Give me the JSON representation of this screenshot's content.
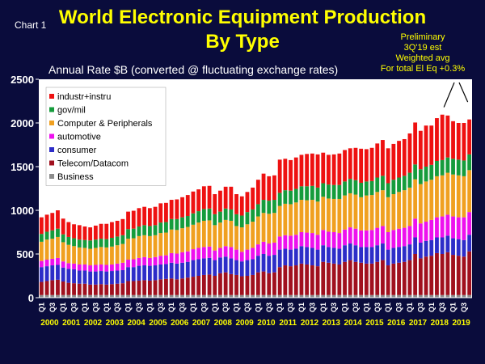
{
  "header": {
    "chart_label": "Chart 1",
    "title_line1": "World Electronic Equipment Production",
    "title_line2": "By Type",
    "subtitle": "Annual Rate $B (converted @ fluctuating exchange rates)",
    "note_lines": [
      "Preliminary",
      "3Q'19 est",
      "Weighted avg",
      "For total El Eq +0.3%"
    ]
  },
  "colors": {
    "background": "#0a0c3c",
    "title": "#ffff00",
    "Business": "#8c8c8c",
    "Telecom/Datacom": "#a0101e",
    "consumer": "#2d2dc8",
    "automotive": "#ee10ee",
    "Computer & Peripherals": "#f0a020",
    "gov/mil": "#159c3c",
    "industr+instru": "#ee1111"
  },
  "chart_data": {
    "type": "bar",
    "stacked": true,
    "ylim": [
      0,
      2500
    ],
    "yticks": [
      0,
      500,
      1000,
      1500,
      2000,
      2500
    ],
    "grid": false,
    "legend_position": "top-left",
    "years": [
      "2000",
      "2001",
      "2002",
      "2003",
      "2004",
      "2005",
      "2006",
      "2007",
      "2008",
      "2009",
      "2010",
      "2011",
      "2012",
      "2013",
      "2014",
      "2015",
      "2016",
      "2017",
      "2018",
      "2019"
    ],
    "quarter_labels": [
      "Q1",
      "Q3"
    ],
    "legend_order": [
      "industr+instru",
      "gov/mil",
      "Computer & Peripherals",
      "automotive",
      "consumer",
      "Telecom/Datacom",
      "Business"
    ],
    "series": [
      {
        "name": "Business",
        "values": [
          30,
          30,
          30,
          30,
          30,
          30,
          30,
          30,
          30,
          30,
          30,
          30,
          30,
          30,
          30,
          30,
          30,
          30,
          30,
          30,
          30,
          30,
          30,
          30,
          30,
          30,
          30,
          30,
          30,
          30,
          30,
          30,
          30,
          30,
          30,
          30,
          30,
          30,
          30,
          30,
          30,
          30,
          30,
          30,
          30,
          30,
          30,
          30,
          30,
          30,
          30,
          30,
          30,
          30,
          30,
          30,
          30,
          30,
          30,
          30,
          30,
          30,
          30,
          30,
          30,
          30,
          30,
          30,
          30,
          30,
          30,
          30,
          30,
          30,
          30,
          30,
          30,
          30,
          30,
          30
        ]
      },
      {
        "name": "Telecom/Datacom",
        "values": [
          150,
          160,
          170,
          175,
          155,
          140,
          135,
          130,
          130,
          120,
          120,
          125,
          120,
          125,
          130,
          135,
          160,
          160,
          165,
          170,
          165,
          170,
          180,
          185,
          190,
          180,
          190,
          200,
          210,
          220,
          230,
          235,
          220,
          250,
          260,
          240,
          230,
          215,
          220,
          230,
          260,
          270,
          250,
          260,
          320,
          340,
          330,
          340,
          360,
          350,
          340,
          330,
          380,
          370,
          360,
          350,
          380,
          400,
          380,
          370,
          360,
          360,
          380,
          400,
          340,
          360,
          370,
          380,
          400,
          470,
          420,
          440,
          450,
          480,
          470,
          490,
          460,
          450,
          440,
          500
        ]
      },
      {
        "name": "consumer",
        "values": [
          170,
          170,
          170,
          170,
          160,
          160,
          160,
          150,
          150,
          150,
          150,
          150,
          150,
          150,
          150,
          150,
          160,
          160,
          170,
          170,
          170,
          170,
          170,
          170,
          180,
          180,
          180,
          180,
          190,
          190,
          190,
          190,
          180,
          180,
          180,
          180,
          170,
          170,
          180,
          180,
          190,
          200,
          200,
          200,
          200,
          190,
          190,
          190,
          200,
          200,
          200,
          190,
          190,
          180,
          180,
          180,
          190,
          190,
          190,
          180,
          190,
          190,
          190,
          190,
          180,
          180,
          180,
          180,
          180,
          190,
          180,
          180,
          180,
          180,
          190,
          190,
          190,
          190,
          190,
          190
        ]
      },
      {
        "name": "automotive",
        "values": [
          70,
          75,
          75,
          80,
          70,
          65,
          65,
          70,
          70,
          70,
          75,
          75,
          75,
          75,
          80,
          85,
          85,
          90,
          90,
          95,
          90,
          95,
          100,
          100,
          110,
          115,
          120,
          120,
          125,
          130,
          130,
          130,
          110,
          110,
          120,
          130,
          120,
          110,
          120,
          130,
          130,
          140,
          140,
          140,
          150,
          155,
          160,
          160,
          160,
          165,
          170,
          170,
          175,
          175,
          180,
          180,
          180,
          185,
          190,
          190,
          190,
          195,
          200,
          200,
          200,
          205,
          210,
          210,
          210,
          215,
          220,
          220,
          230,
          230,
          240,
          240,
          250,
          250,
          260,
          260
        ]
      },
      {
        "name": "Computer & Peripherals",
        "values": [
          220,
          230,
          230,
          240,
          220,
          210,
          200,
          195,
          190,
          190,
          195,
          200,
          200,
          205,
          210,
          215,
          240,
          240,
          250,
          250,
          250,
          250,
          260,
          260,
          270,
          270,
          275,
          280,
          280,
          290,
          300,
          300,
          290,
          290,
          300,
          300,
          270,
          280,
          290,
          300,
          320,
          330,
          340,
          340,
          350,
          360,
          360,
          370,
          370,
          370,
          380,
          380,
          380,
          380,
          380,
          390,
          390,
          390,
          390,
          380,
          400,
          400,
          410,
          410,
          400,
          410,
          420,
          430,
          440,
          450,
          450,
          460,
          460,
          470,
          470,
          480,
          480,
          480,
          470,
          480
        ]
      },
      {
        "name": "gov/mil",
        "values": [
          90,
          90,
          95,
          95,
          90,
          90,
          90,
          90,
          90,
          95,
          95,
          95,
          95,
          100,
          100,
          100,
          110,
          110,
          110,
          115,
          115,
          115,
          120,
          120,
          120,
          125,
          125,
          125,
          130,
          130,
          135,
          135,
          125,
          125,
          130,
          130,
          135,
          135,
          140,
          140,
          140,
          150,
          150,
          150,
          150,
          155,
          155,
          155,
          155,
          160,
          160,
          160,
          155,
          160,
          160,
          160,
          160,
          165,
          165,
          165,
          160,
          160,
          165,
          165,
          160,
          165,
          165,
          165,
          170,
          170,
          170,
          170,
          170,
          175,
          175,
          175,
          180,
          180,
          180,
          180
        ]
      },
      {
        "name": "industr+instru",
        "values": [
          190,
          195,
          200,
          210,
          180,
          170,
          160,
          165,
          155,
          150,
          160,
          170,
          175,
          180,
          180,
          185,
          200,
          205,
          210,
          210,
          205,
          210,
          220,
          220,
          220,
          225,
          230,
          240,
          250,
          250,
          260,
          260,
          230,
          240,
          250,
          260,
          230,
          220,
          230,
          250,
          280,
          300,
          280,
          280,
          380,
          360,
          350,
          360,
          360,
          370,
          370,
          380,
          350,
          340,
          350,
          360,
          360,
          350,
          370,
          390,
          370,
          380,
          390,
          410,
          400,
          410,
          420,
          420,
          450,
          480,
          440,
          470,
          450,
          490,
          520,
          480,
          430,
          420,
          430,
          400
        ]
      }
    ]
  }
}
